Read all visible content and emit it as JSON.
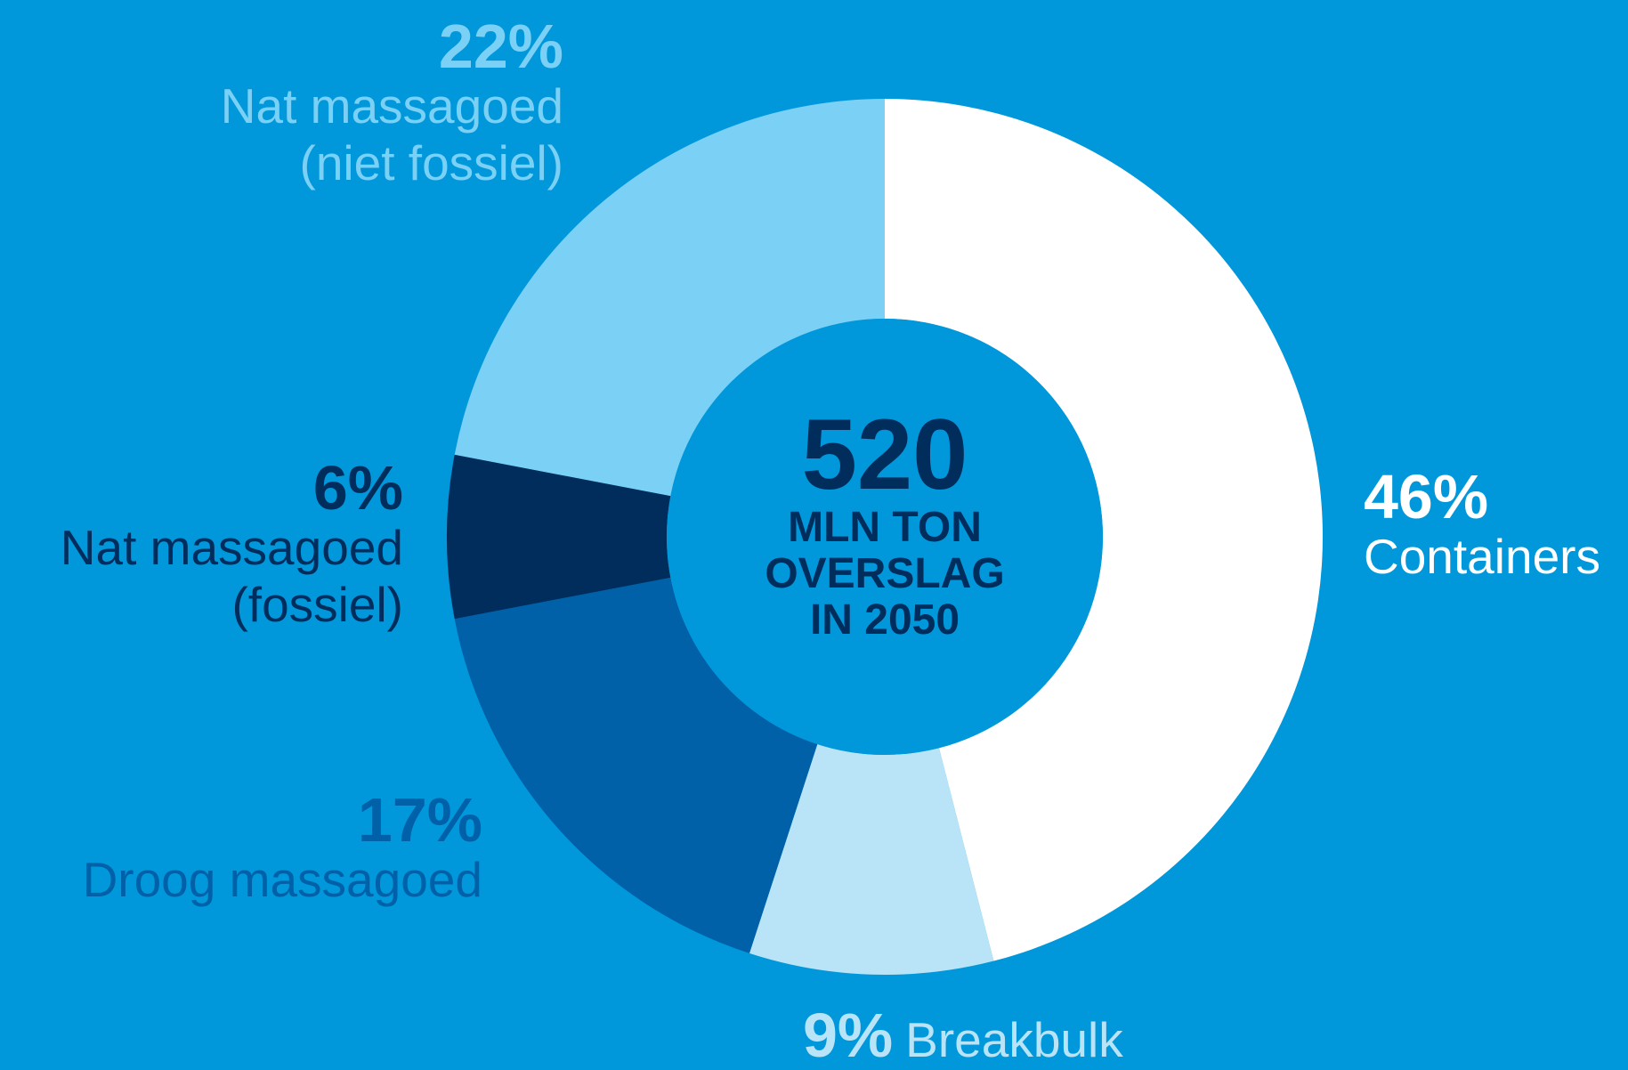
{
  "chart_data": {
    "type": "donut",
    "categories": [
      "Containers",
      "Breakbulk",
      "Droog massagoed",
      "Nat massagoed\n(fossiel)",
      "Nat massagoed\n(niet fossiel)"
    ],
    "values": [
      46,
      9,
      17,
      6,
      22
    ],
    "value_labels": [
      "46%",
      "9%",
      "17%",
      "6%",
      "22%"
    ],
    "colors": [
      "#ffffff",
      "#b9e4f7",
      "#0060a8",
      "#002d5c",
      "#7bd0f5"
    ],
    "center_label": "520",
    "center_sublabel": "MLN TON\nOVERSLAG\nIN 2050"
  }
}
